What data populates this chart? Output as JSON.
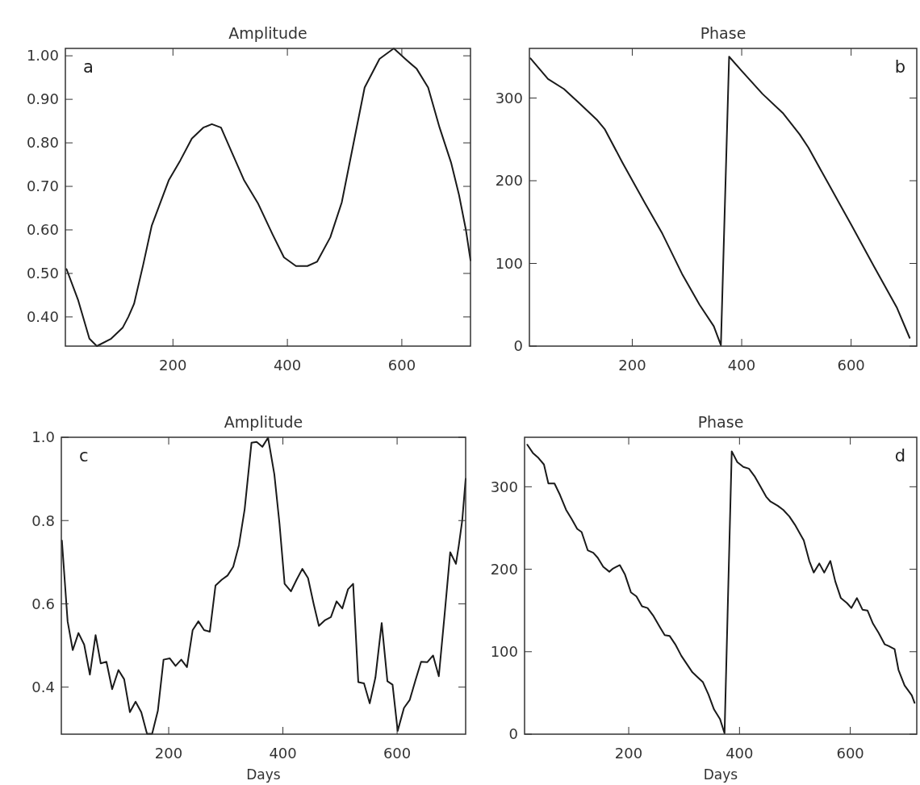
{
  "chart_data": [
    {
      "type": "line",
      "title": "Amplitude",
      "annotations": [
        "a"
      ],
      "xlim": [
        12,
        720
      ],
      "xticks": [
        200,
        400,
        600
      ],
      "ylim": [
        0.333,
        1.017
      ],
      "yticks": [
        {
          "value": 0.4,
          "label": "0.40"
        },
        {
          "value": 0.5,
          "label": "0.50"
        },
        {
          "value": 0.6,
          "label": "0.60"
        },
        {
          "value": 0.7,
          "label": "0.70"
        },
        {
          "value": 0.8,
          "label": "0.80"
        },
        {
          "value": 0.9,
          "label": "0.90"
        },
        {
          "value": 1,
          "label": "1.00"
        }
      ],
      "series": [
        {
          "color": "#1a1a1a",
          "x": [
            14,
            34,
            54,
            67,
            92,
            112,
            122,
            132,
            148,
            163,
            193,
            213,
            233,
            253,
            268,
            284,
            304,
            324,
            349,
            374,
            394,
            415,
            435,
            452,
            475,
            495,
            515,
            535,
            561,
            586,
            606,
            626,
            646,
            666,
            686,
            700,
            712,
            720
          ],
          "values": [
            0.51,
            0.44,
            0.35,
            0.333,
            0.35,
            0.375,
            0.4,
            0.43,
            0.52,
            0.61,
            0.715,
            0.76,
            0.81,
            0.835,
            0.843,
            0.835,
            0.775,
            0.715,
            0.66,
            0.59,
            0.537,
            0.517,
            0.517,
            0.527,
            0.583,
            0.663,
            0.795,
            0.927,
            0.993,
            1.017,
            0.993,
            0.97,
            0.927,
            0.835,
            0.755,
            0.68,
            0.6,
            0.53
          ]
        }
      ]
    },
    {
      "type": "line",
      "title": "Phase",
      "annotations": [
        "b"
      ],
      "xlim": [
        12,
        720
      ],
      "xticks": [
        200,
        400,
        600
      ],
      "ylim": [
        0,
        360
      ],
      "yticks": [
        0,
        100,
        200,
        300
      ],
      "series": [
        {
          "color": "#1a1a1a",
          "x": [
            14,
            46,
            75,
            103,
            135,
            150,
            182,
            224,
            255,
            292,
            323,
            349,
            362,
            377,
            401,
            438,
            475,
            506,
            522,
            558,
            600,
            642,
            684,
            707
          ],
          "values": [
            348,
            323,
            311,
            294,
            274,
            262,
            222,
            172,
            136,
            86,
            50,
            24,
            1,
            350,
            332,
            305,
            282,
            256,
            240,
            197,
            147,
            96,
            46,
            10
          ]
        }
      ]
    },
    {
      "type": "line",
      "title": "Amplitude",
      "xlabel": "Days",
      "annotations": [
        "c"
      ],
      "xlim": [
        12,
        720
      ],
      "xticks": [
        200,
        400,
        600
      ],
      "ylim": [
        0.287,
        1.0
      ],
      "yticks": [
        {
          "value": 0.4,
          "label": "0.4"
        },
        {
          "value": 0.6,
          "label": "0.6"
        },
        {
          "value": 0.8,
          "label": "0.8"
        },
        {
          "value": 1,
          "label": "1.0"
        }
      ],
      "series": [
        {
          "color": "#1a1a1a",
          "x": [
            13,
            23,
            32,
            42,
            52,
            62,
            72,
            81,
            91,
            101,
            112,
            122,
            132,
            142,
            152,
            162,
            171,
            181,
            191,
            202,
            212,
            222,
            232,
            242,
            252,
            262,
            272,
            282,
            293,
            303,
            313,
            323,
            333,
            345,
            354,
            364,
            374,
            385,
            394,
            403,
            414,
            424,
            434,
            444,
            454,
            463,
            474,
            484,
            494,
            504,
            514,
            523,
            532,
            542,
            552,
            562,
            573,
            583,
            592,
            601,
            612,
            622,
            632,
            642,
            653,
            663,
            673,
            683,
            693,
            703,
            708,
            714,
            720
          ],
          "values": [
            0.752,
            0.558,
            0.489,
            0.53,
            0.502,
            0.43,
            0.525,
            0.457,
            0.461,
            0.395,
            0.441,
            0.419,
            0.34,
            0.365,
            0.34,
            0.288,
            0.288,
            0.343,
            0.466,
            0.469,
            0.451,
            0.466,
            0.448,
            0.537,
            0.558,
            0.537,
            0.533,
            0.644,
            0.658,
            0.668,
            0.689,
            0.741,
            0.827,
            0.987,
            0.989,
            0.977,
            0.999,
            0.911,
            0.793,
            0.648,
            0.63,
            0.658,
            0.684,
            0.662,
            0.599,
            0.547,
            0.561,
            0.568,
            0.606,
            0.589,
            0.635,
            0.648,
            0.412,
            0.409,
            0.361,
            0.423,
            0.554,
            0.414,
            0.406,
            0.295,
            0.35,
            0.369,
            0.416,
            0.461,
            0.46,
            0.476,
            0.426,
            0.572,
            0.724,
            0.696,
            0.74,
            0.8,
            0.9
          ]
        }
      ]
    },
    {
      "type": "line",
      "title": "Phase",
      "xlabel": "Days",
      "annotations": [
        "d"
      ],
      "xlim": [
        12,
        720
      ],
      "xticks": [
        200,
        400,
        600
      ],
      "ylim": [
        0,
        360
      ],
      "yticks": [
        0,
        100,
        200,
        300
      ],
      "series": [
        {
          "color": "#1a1a1a",
          "x": [
            17,
            27,
            37,
            47,
            55,
            66,
            76,
            87,
            97,
            107,
            115,
            126,
            136,
            144,
            154,
            165,
            172,
            184,
            193,
            204,
            214,
            224,
            234,
            244,
            256,
            265,
            274,
            284,
            295,
            305,
            315,
            323,
            334,
            344,
            354,
            365,
            373,
            386,
            396,
            407,
            417,
            427,
            438,
            448,
            456,
            469,
            479,
            490,
            500,
            511,
            516,
            526,
            534,
            544,
            553,
            564,
            573,
            583,
            594,
            602,
            612,
            622,
            631,
            641,
            651,
            662,
            669,
            680,
            687,
            698,
            711,
            716
          ],
          "values": [
            351,
            341,
            335,
            327,
            304,
            304,
            290,
            272,
            261,
            249,
            245,
            223,
            220,
            214,
            203,
            197,
            201,
            205,
            194,
            172,
            167,
            155,
            153,
            144,
            130,
            120,
            119,
            109,
            95,
            85,
            75,
            70,
            63,
            48,
            30,
            18,
            1,
            343,
            330,
            324,
            322,
            313,
            300,
            288,
            282,
            277,
            272,
            264,
            254,
            241,
            235,
            210,
            196,
            207,
            196,
            210,
            185,
            165,
            159,
            153,
            165,
            151,
            150,
            134,
            123,
            109,
            107,
            103,
            78,
            59,
            47,
            38
          ]
        }
      ]
    }
  ]
}
